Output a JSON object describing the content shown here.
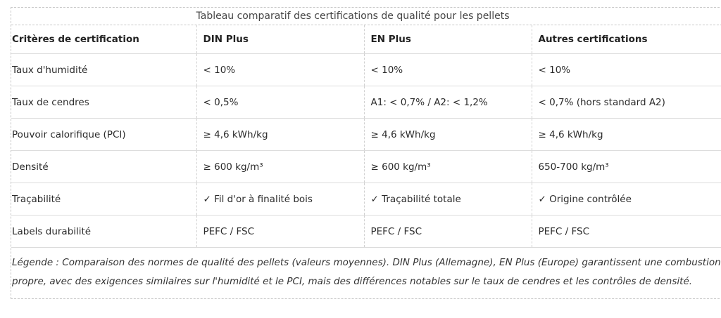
{
  "table": {
    "title": "Tableau comparatif des certifications de qualité pour les pellets",
    "headers": [
      "Critères de certification",
      "DIN Plus",
      "EN Plus",
      "Autres certifications"
    ],
    "rows": [
      [
        "Taux d'humidité",
        "< 10%",
        "< 10%",
        "< 10%"
      ],
      [
        "Taux de cendres",
        "< 0,5%",
        "A1: < 0,7% / A2: < 1,2%",
        "< 0,7% (hors standard A2)"
      ],
      [
        "Pouvoir calorifique (PCI)",
        "≥ 4,6 kWh/kg",
        "≥ 4,6 kWh/kg",
        "≥ 4,6 kWh/kg"
      ],
      [
        "Densité",
        "≥ 600 kg/m³",
        "≥ 600 kg/m³",
        "650-700 kg/m³"
      ],
      [
        "Traçabilité",
        "✓ Fil d'or à finalité bois",
        "✓ Traçabilité totale",
        "✓ Origine contrôlée"
      ],
      [
        "Labels durabilité",
        "PEFC / FSC",
        "PEFC / FSC",
        "PEFC / FSC"
      ]
    ],
    "caption": "Légende : Comparaison des normes de qualité des pellets (valeurs moyennes). DIN Plus (Allemagne), EN Plus (Europe)  garantissent une combustion propre, avec des exigences similaires sur l'humidité et le PCI, mais des différences notables sur le taux de cendres et les contrôles de densité."
  }
}
